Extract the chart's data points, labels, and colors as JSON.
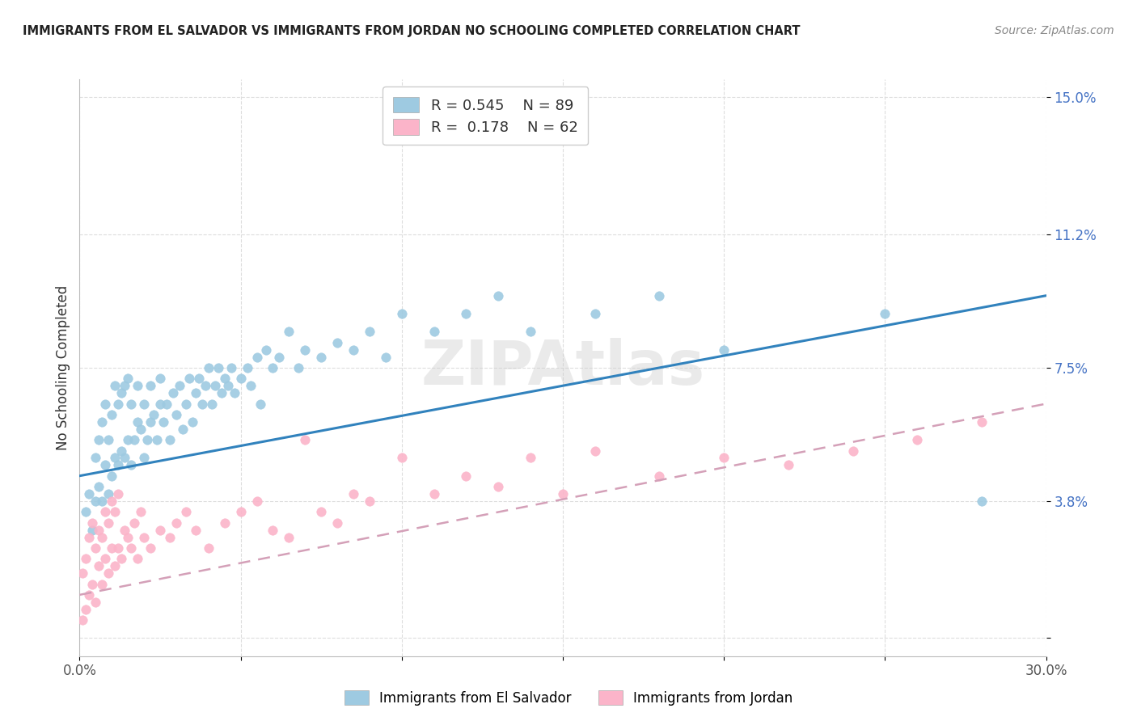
{
  "title": "IMMIGRANTS FROM EL SALVADOR VS IMMIGRANTS FROM JORDAN NO SCHOOLING COMPLETED CORRELATION CHART",
  "source": "Source: ZipAtlas.com",
  "ylabel": "No Schooling Completed",
  "y_ticks": [
    0.0,
    0.038,
    0.075,
    0.112,
    0.15
  ],
  "y_tick_labels": [
    "",
    "3.8%",
    "7.5%",
    "11.2%",
    "15.0%"
  ],
  "xlim": [
    0.0,
    0.3
  ],
  "ylim": [
    -0.005,
    0.155
  ],
  "color_blue": "#9ecae1",
  "color_blue_line": "#3182bd",
  "color_pink": "#fbb4c9",
  "color_pink_line": "#e05080",
  "color_pink_dash": "#d4a0b8",
  "watermark": "ZIPAtlas",
  "es_line_start": 0.045,
  "es_line_end": 0.095,
  "jo_line_start": 0.012,
  "jo_line_end": 0.065,
  "el_salvador_x": [
    0.002,
    0.003,
    0.004,
    0.005,
    0.005,
    0.006,
    0.006,
    0.007,
    0.007,
    0.008,
    0.008,
    0.009,
    0.009,
    0.01,
    0.01,
    0.011,
    0.011,
    0.012,
    0.012,
    0.013,
    0.013,
    0.014,
    0.014,
    0.015,
    0.015,
    0.016,
    0.016,
    0.017,
    0.018,
    0.018,
    0.019,
    0.02,
    0.02,
    0.021,
    0.022,
    0.022,
    0.023,
    0.024,
    0.025,
    0.025,
    0.026,
    0.027,
    0.028,
    0.029,
    0.03,
    0.031,
    0.032,
    0.033,
    0.034,
    0.035,
    0.036,
    0.037,
    0.038,
    0.039,
    0.04,
    0.041,
    0.042,
    0.043,
    0.044,
    0.045,
    0.046,
    0.047,
    0.048,
    0.05,
    0.052,
    0.053,
    0.055,
    0.056,
    0.058,
    0.06,
    0.062,
    0.065,
    0.068,
    0.07,
    0.075,
    0.08,
    0.085,
    0.09,
    0.095,
    0.1,
    0.11,
    0.12,
    0.13,
    0.14,
    0.16,
    0.18,
    0.2,
    0.25,
    0.28
  ],
  "el_salvador_y": [
    0.035,
    0.04,
    0.03,
    0.038,
    0.05,
    0.042,
    0.055,
    0.038,
    0.06,
    0.048,
    0.065,
    0.04,
    0.055,
    0.045,
    0.062,
    0.05,
    0.07,
    0.048,
    0.065,
    0.052,
    0.068,
    0.05,
    0.07,
    0.055,
    0.072,
    0.048,
    0.065,
    0.055,
    0.06,
    0.07,
    0.058,
    0.05,
    0.065,
    0.055,
    0.06,
    0.07,
    0.062,
    0.055,
    0.065,
    0.072,
    0.06,
    0.065,
    0.055,
    0.068,
    0.062,
    0.07,
    0.058,
    0.065,
    0.072,
    0.06,
    0.068,
    0.072,
    0.065,
    0.07,
    0.075,
    0.065,
    0.07,
    0.075,
    0.068,
    0.072,
    0.07,
    0.075,
    0.068,
    0.072,
    0.075,
    0.07,
    0.078,
    0.065,
    0.08,
    0.075,
    0.078,
    0.085,
    0.075,
    0.08,
    0.078,
    0.082,
    0.08,
    0.085,
    0.078,
    0.09,
    0.085,
    0.09,
    0.095,
    0.085,
    0.09,
    0.095,
    0.08,
    0.09,
    0.038
  ],
  "jordan_x": [
    0.001,
    0.001,
    0.002,
    0.002,
    0.003,
    0.003,
    0.004,
    0.004,
    0.005,
    0.005,
    0.006,
    0.006,
    0.007,
    0.007,
    0.008,
    0.008,
    0.009,
    0.009,
    0.01,
    0.01,
    0.011,
    0.011,
    0.012,
    0.012,
    0.013,
    0.014,
    0.015,
    0.016,
    0.017,
    0.018,
    0.019,
    0.02,
    0.022,
    0.025,
    0.028,
    0.03,
    0.033,
    0.036,
    0.04,
    0.045,
    0.05,
    0.055,
    0.06,
    0.065,
    0.07,
    0.075,
    0.08,
    0.085,
    0.09,
    0.1,
    0.11,
    0.12,
    0.13,
    0.14,
    0.15,
    0.16,
    0.18,
    0.2,
    0.22,
    0.24,
    0.26,
    0.28
  ],
  "jordan_y": [
    0.005,
    0.018,
    0.008,
    0.022,
    0.012,
    0.028,
    0.015,
    0.032,
    0.01,
    0.025,
    0.02,
    0.03,
    0.015,
    0.028,
    0.022,
    0.035,
    0.018,
    0.032,
    0.025,
    0.038,
    0.02,
    0.035,
    0.025,
    0.04,
    0.022,
    0.03,
    0.028,
    0.025,
    0.032,
    0.022,
    0.035,
    0.028,
    0.025,
    0.03,
    0.028,
    0.032,
    0.035,
    0.03,
    0.025,
    0.032,
    0.035,
    0.038,
    0.03,
    0.028,
    0.055,
    0.035,
    0.032,
    0.04,
    0.038,
    0.05,
    0.04,
    0.045,
    0.042,
    0.05,
    0.04,
    0.052,
    0.045,
    0.05,
    0.048,
    0.052,
    0.055,
    0.06
  ]
}
